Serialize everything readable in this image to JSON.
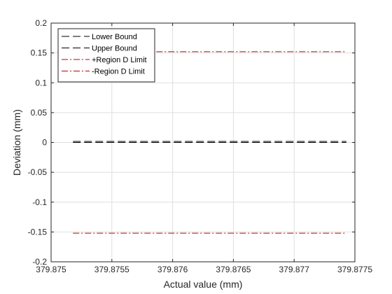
{
  "chart_data": {
    "type": "line",
    "title": "",
    "xlabel": "Actual value (mm)",
    "ylabel": "Deviation (mm)",
    "xlim": [
      379.875,
      379.8775
    ],
    "ylim": [
      -0.2,
      0.2
    ],
    "xticks": [
      379.875,
      379.8755,
      379.876,
      379.8765,
      379.877,
      379.8775
    ],
    "xtick_labels": [
      "379.875",
      "379.8755",
      "379.876",
      "379.8765",
      "379.877",
      "379.8775"
    ],
    "yticks": [
      0.2,
      0.15,
      0.1,
      0.05,
      0,
      -0.05,
      -0.1,
      -0.15,
      -0.2
    ],
    "ytick_labels": [
      "0.2",
      "0.15",
      "0.1",
      "0.05",
      "0",
      "-0.05",
      "-0.1",
      "-0.15",
      "-0.2"
    ],
    "grid": true,
    "legend_position": "top-left",
    "series": [
      {
        "name": "Lower Bound",
        "color": "#000000",
        "style": "dashed",
        "x": [
          379.87518,
          379.87743
        ],
        "y": [
          0,
          0
        ]
      },
      {
        "name": "Upper Bound",
        "color": "#000000",
        "style": "dashed",
        "x": [
          379.87518,
          379.87743
        ],
        "y": [
          0.0018,
          0.0018
        ]
      },
      {
        "name": "+Region D Limit",
        "color": "#c00000",
        "style": "dash-dot",
        "x": [
          379.87518,
          379.87743
        ],
        "y": [
          0.152,
          0.152
        ]
      },
      {
        "name": "-Region D Limit",
        "color": "#c00000",
        "style": "dash-dot",
        "x": [
          379.87518,
          379.87743
        ],
        "y": [
          -0.152,
          -0.152
        ]
      }
    ]
  }
}
